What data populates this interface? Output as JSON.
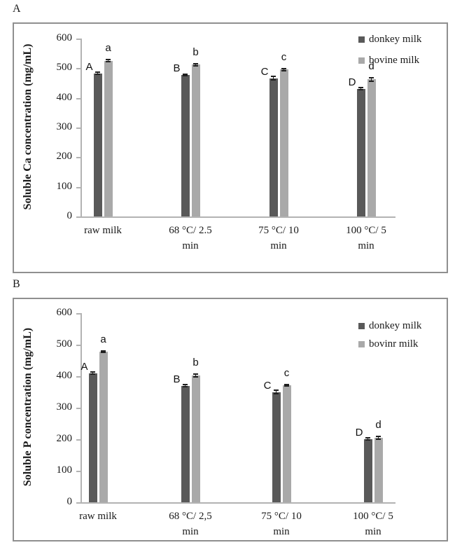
{
  "figure": {
    "background": "#ffffff",
    "border_color": "#8f8f8f"
  },
  "colors": {
    "donkey_bar": "#595959",
    "bovine_bar": "#a9a9a9",
    "axis_line": "#b3b3b3",
    "error_bar": "#1f1f1f",
    "text": "#1a1a1a"
  },
  "panels": [
    {
      "label": "A",
      "chart_data": {
        "type": "bar",
        "title": "",
        "xlabel": "",
        "ylabel": "Soluble Ca concentration (mg/mL)",
        "ylim": [
          0,
          600
        ],
        "yticks": [
          0,
          100,
          200,
          300,
          400,
          500,
          600
        ],
        "grid": false,
        "legend_position": "top-right",
        "categories": [
          "raw milk",
          "68 °C/ 2.5 min",
          "75 °C/ 10 min",
          "100 °C/ 5 min"
        ],
        "category_lines": [
          [
            "raw milk"
          ],
          [
            "68 °C/ 2.5",
            "min"
          ],
          [
            "75 °C/ 10",
            "min"
          ],
          [
            "100 °C/ 5",
            "min"
          ]
        ],
        "series": [
          {
            "name": "donkey milk",
            "color": "#595959",
            "values": [
              483,
              477,
              466,
              431
            ],
            "errors": [
              3,
              3,
              6,
              3
            ],
            "letters": [
              "A",
              "B",
              "C",
              "D"
            ]
          },
          {
            "name": "bovine milk",
            "color": "#a9a9a9",
            "values": [
              525,
              512,
              495,
              462
            ],
            "errors": [
              3,
              4,
              3,
              5
            ],
            "letters": [
              "a",
              "b",
              "c",
              "d"
            ]
          }
        ]
      }
    },
    {
      "label": "B",
      "chart_data": {
        "type": "bar",
        "title": "",
        "xlabel": "",
        "ylabel": "Soluble P concentration (mg/mL)",
        "ylim": [
          0,
          600
        ],
        "yticks": [
          0,
          100,
          200,
          300,
          400,
          500,
          600
        ],
        "grid": false,
        "legend_position": "top-right",
        "categories": [
          "raw milk",
          "68 °C/ 2,5 min",
          "75 °C/ 10 min",
          "100 °C/ 5 min"
        ],
        "category_lines": [
          [
            "raw milk"
          ],
          [
            "68 °C/ 2,5",
            "min"
          ],
          [
            "75 °C/ 10",
            "min"
          ],
          [
            "100 °C/ 5",
            "min"
          ]
        ],
        "series": [
          {
            "name": "donkey milk",
            "color": "#595959",
            "values": [
              410,
              370,
              350,
              201
            ],
            "errors": [
              4,
              3,
              5,
              3
            ],
            "letters": [
              "A",
              "B",
              "C",
              "D"
            ]
          },
          {
            "name": "bovinr milk",
            "color": "#a9a9a9",
            "values": [
              478,
              402,
              371,
              204
            ],
            "errors": [
              3,
              4,
              3,
              4
            ],
            "letters": [
              "a",
              "b",
              "c",
              "d"
            ]
          }
        ]
      }
    }
  ]
}
